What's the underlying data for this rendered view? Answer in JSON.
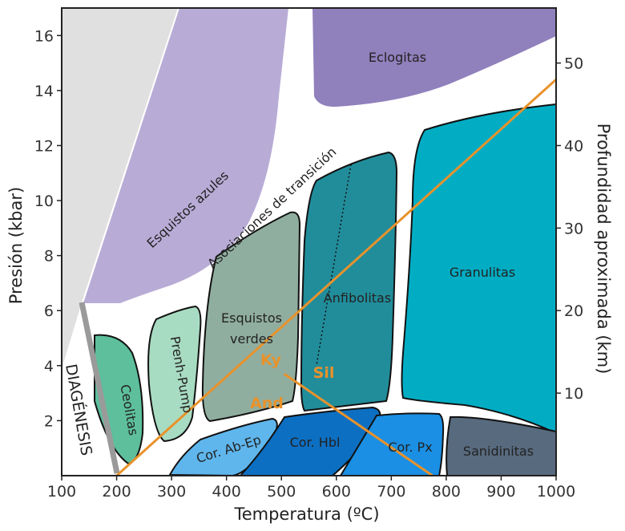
{
  "chart_data": {
    "type": "diagram",
    "xlabel": "Temperatura (ºC)",
    "ylabel_left": "Presión (kbar)",
    "ylabel_right": "Profundidad aproximada (km)",
    "xlim": [
      100,
      1000
    ],
    "ylim": [
      0,
      17
    ],
    "x_ticks": [
      "100",
      "200",
      "300",
      "400",
      "500",
      "600",
      "700",
      "800",
      "900",
      "1000"
    ],
    "y_ticks": [
      "2",
      "4",
      "6",
      "8",
      "10",
      "12",
      "14",
      "16"
    ],
    "depth_ticks": [
      "10",
      "20",
      "30",
      "40",
      "50"
    ],
    "facies": {
      "diagenesis": "DIAGÉNESIS",
      "zeolites": "Ceolitas",
      "prehnite_pumpellyite": "Prenh-Pump",
      "blueschist": "Esquistos azules",
      "transition": "Asociaciones de transición",
      "greenschist_1": "Esquistos",
      "greenschist_2": "verdes",
      "amphibolite": "Anfibolitas",
      "eclogite": "Eclogitas",
      "granulite": "Granulitas",
      "hornfels_ab_ep": "Cor. Ab-Ep",
      "hornfels_hbl": "Cor. Hbl",
      "hornfels_px": "Cor. Px",
      "sanidinite": "Sanidinitas"
    },
    "aluminosilicates": {
      "kyanite": "Ky",
      "sillimanite": "Sil",
      "andalusite": "And",
      "triple_point": {
        "T": 505,
        "P": 3.7
      },
      "geotherm": {
        "from": {
          "T": 200,
          "P": 0
        },
        "to": {
          "T": 1000,
          "P": 14.4
        }
      },
      "and_sil": {
        "from": {
          "T": 505,
          "P": 3.7
        },
        "to": {
          "T": 775,
          "P": 0
        }
      }
    },
    "colors": {
      "diagenesis": "#e0e0e0",
      "diagenesis_bar": "#9a9a9a",
      "zeolites": "#5dbf9c",
      "prehnite_pumpellyite": "#a8dcc2",
      "blueschist": "#b8acd6",
      "eclogite": "#9080bc",
      "greenschist": "#90aea0",
      "amphibolite": "#218d9b",
      "granulite": "#02adc4",
      "hornfels_ab_ep": "#5fb6ec",
      "hornfels_hbl": "#0d6fc2",
      "hornfels_px": "#1a8fe3",
      "sanidinite": "#586a7e",
      "geotherm": "#e8922b"
    }
  }
}
